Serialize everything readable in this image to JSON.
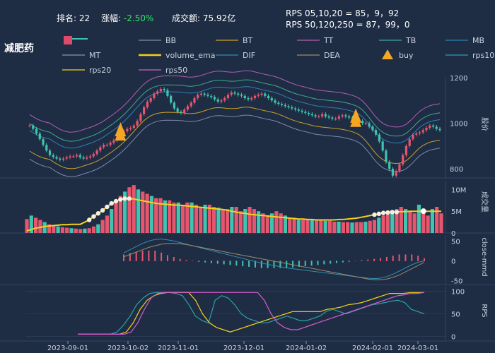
{
  "header": {
    "rank_label": "排名:",
    "rank_value": "22",
    "change_label": "涨幅:",
    "change_value": "-2.50%",
    "turnover_label": "成交额:",
    "turnover_value": "75.92亿",
    "rps_line1": "RPS 05,10,20 = 85，9，92",
    "rps_line2": "RPS 50,120,250 = 87，99，0"
  },
  "stock_name": "减肥药",
  "legend": [
    {
      "label": "",
      "color": "#e04a6a",
      "type": "candle"
    },
    {
      "label": "BB",
      "color": "#7a8aa8",
      "type": "line"
    },
    {
      "label": "BT",
      "color": "#c9a227",
      "type": "line"
    },
    {
      "label": "TT",
      "color": "#b05fb0",
      "type": "line"
    },
    {
      "label": "TB",
      "color": "#3fa89a",
      "type": "line"
    },
    {
      "label": "MB",
      "color": "#2f7fb8",
      "type": "line"
    },
    {
      "label": "MT",
      "color": "#8a93a8",
      "type": "line"
    },
    {
      "label": "volume_ema",
      "color": "#f2d21b",
      "type": "line"
    },
    {
      "label": "DIF",
      "color": "#2f8fb0",
      "type": "line"
    },
    {
      "label": "DEA",
      "color": "#9a8a6a",
      "type": "line"
    },
    {
      "label": "buy",
      "color": "#f5a623",
      "type": "triangle"
    },
    {
      "label": "rps10",
      "color": "#2aa0a8",
      "type": "line"
    },
    {
      "label": "rps20",
      "color": "#f2d21b",
      "type": "line"
    },
    {
      "label": "rps50",
      "color": "#d85ad0",
      "type": "line"
    }
  ],
  "colors": {
    "up": "#e8556e",
    "down": "#3fc4b0",
    "grid": "#33445f",
    "ema": "#f2d21b"
  },
  "chart_data": {
    "type": "candlestick",
    "x_ticks": [
      "2023-09-01",
      "2023-10-02",
      "2023-11-01",
      "2023-12-01",
      "2024-01-02",
      "2024-02-01",
      "2024-03-01"
    ],
    "price": {
      "ylabel": "股价",
      "ticks": [
        800,
        1000,
        1200
      ],
      "ylim": [
        760,
        1200
      ],
      "close": [
        990,
        975,
        955,
        930,
        905,
        880,
        860,
        852,
        845,
        840,
        845,
        850,
        855,
        855,
        860,
        850,
        845,
        850,
        855,
        865,
        880,
        895,
        905,
        905,
        915,
        925,
        940,
        955,
        965,
        975,
        980,
        990,
        1010,
        1040,
        1070,
        1095,
        1110,
        1130,
        1140,
        1150,
        1145,
        1120,
        1090,
        1065,
        1050,
        1045,
        1060,
        1075,
        1090,
        1110,
        1125,
        1130,
        1125,
        1120,
        1115,
        1105,
        1095,
        1100,
        1110,
        1125,
        1135,
        1130,
        1125,
        1120,
        1110,
        1105,
        1110,
        1120,
        1125,
        1130,
        1120,
        1110,
        1100,
        1090,
        1085,
        1080,
        1075,
        1070,
        1065,
        1060,
        1055,
        1050,
        1045,
        1040,
        1035,
        1030,
        1030,
        1040,
        1030,
        1025,
        1020,
        1020,
        1030,
        1035,
        1030,
        1025,
        1020,
        1015,
        1010,
        1000,
        1000,
        985,
        970,
        950,
        920,
        880,
        830,
        800,
        770,
        790,
        820,
        860,
        900,
        930,
        950,
        955,
        960,
        970,
        980,
        990,
        985,
        975,
        970
      ],
      "buy_signals": [
        {
          "x": "2023-09-25"
        },
        {
          "x": "2024-02-06"
        }
      ]
    },
    "volume": {
      "ylabel": "成交量",
      "ticks": [
        "5M",
        "10M"
      ],
      "ylim": [
        0,
        12
      ],
      "values": [
        3.2,
        4.0,
        3.5,
        3.0,
        2.5,
        2.0,
        1.8,
        1.5,
        1.3,
        1.2,
        1.1,
        1.0,
        0.9,
        1.0,
        1.1,
        1.5,
        2.0,
        3.0,
        4.0,
        5.5,
        7.0,
        8.5,
        9.5,
        10.5,
        11.0,
        10.0,
        9.5,
        9.0,
        8.5,
        8.0,
        8.0,
        7.5,
        7.5,
        7.0,
        7.0,
        6.5,
        7.0,
        7.0,
        6.5,
        6.0,
        6.5,
        6.5,
        6.0,
        5.8,
        5.5,
        5.5,
        6.0,
        6.0,
        5.0,
        5.5,
        6.0,
        5.5,
        5.0,
        4.5,
        4.0,
        4.5,
        5.0,
        4.5,
        4.0,
        3.5,
        3.5,
        3.0,
        3.0,
        3.2,
        3.2,
        3.0,
        3.0,
        2.8,
        2.8,
        2.6,
        2.6,
        2.5,
        2.5,
        2.4,
        2.5,
        2.5,
        2.6,
        2.8,
        3.0,
        3.5,
        4.0,
        4.5,
        5.0,
        5.5,
        6.0,
        5.5,
        5.0,
        4.5,
        6.5,
        5.0,
        4.0,
        5.5,
        6.0,
        4.5
      ],
      "ema": [
        0.5,
        0.8,
        1.1,
        1.3,
        1.5,
        1.6,
        1.7,
        1.8,
        1.9,
        1.9,
        2.0,
        2.0,
        2.0,
        2.5,
        3.0,
        3.8,
        4.5,
        5.2,
        6.0,
        6.8,
        7.3,
        7.7,
        7.9,
        7.9,
        7.8,
        7.6,
        7.4,
        7.2,
        7.0,
        6.8,
        6.7,
        6.6,
        6.5,
        6.4,
        6.4,
        6.3,
        6.2,
        6.1,
        6.0,
        5.9,
        5.8,
        5.7,
        5.6,
        5.5,
        5.4,
        5.2,
        5.0,
        4.8,
        4.6,
        4.5,
        4.3,
        4.2,
        4.1,
        4.0,
        3.9,
        3.8,
        3.7,
        3.6,
        3.5,
        3.4,
        3.3,
        3.2,
        3.2,
        3.1,
        3.1,
        3.0,
        3.0,
        3.0,
        3.0,
        3.0,
        3.1,
        3.1,
        3.2,
        3.3,
        3.4,
        3.6,
        3.8,
        4.0,
        4.2,
        4.4,
        4.6,
        4.7,
        4.8,
        4.8,
        4.9,
        4.9,
        5.0,
        5.0,
        5.0,
        5.0,
        5.0,
        5.0,
        5.0,
        5.0
      ]
    },
    "macd": {
      "ylabel": "close-mmd",
      "ticks": [
        -50,
        0,
        50
      ],
      "ylim": [
        -60,
        65
      ],
      "dif": [
        20,
        28,
        36,
        44,
        50,
        54,
        55,
        53,
        50,
        46,
        42,
        38,
        34,
        30,
        26,
        22,
        18,
        14,
        10,
        6,
        2,
        -2,
        -6,
        -9,
        -12,
        -15,
        -18,
        -20,
        -22,
        -24,
        -26,
        -28,
        -30,
        -32,
        -34,
        -36,
        -38,
        -40,
        -42,
        -44,
        -45,
        -44,
        -40,
        -34,
        -26,
        -18,
        -10,
        -4,
        0
      ],
      "dea": [
        10,
        16,
        22,
        28,
        34,
        38,
        42,
        44,
        44,
        43,
        41,
        38,
        35,
        32,
        29,
        26,
        23,
        20,
        17,
        14,
        11,
        8,
        5,
        2,
        -1,
        -4,
        -7,
        -10,
        -13,
        -16,
        -19,
        -22,
        -25,
        -28,
        -31,
        -34,
        -37,
        -40,
        -43,
        -46,
        -48,
        -48,
        -46,
        -42,
        -36,
        -28,
        -20,
        -12,
        -4
      ]
    },
    "rps": {
      "ylabel": "RPS",
      "ticks": [
        0,
        50,
        100
      ],
      "ylim": [
        -10,
        110
      ],
      "rps10": [
        5,
        5,
        5,
        5,
        5,
        5,
        10,
        25,
        45,
        70,
        85,
        95,
        97,
        97,
        97,
        95,
        90,
        70,
        45,
        35,
        30,
        80,
        90,
        85,
        70,
        50,
        40,
        35,
        30,
        30,
        35,
        40,
        45,
        40,
        35,
        35,
        40,
        45,
        55,
        60,
        55,
        50,
        55,
        60,
        65,
        70,
        72,
        75,
        78,
        80,
        75,
        60,
        55,
        50
      ],
      "rps20": [
        5,
        5,
        5,
        5,
        5,
        5,
        5,
        10,
        30,
        60,
        80,
        90,
        95,
        97,
        97,
        97,
        97,
        80,
        50,
        30,
        20,
        15,
        10,
        15,
        20,
        25,
        30,
        35,
        40,
        45,
        50,
        55,
        55,
        55,
        55,
        55,
        60,
        62,
        65,
        70,
        72,
        75,
        80,
        85,
        90,
        95,
        95,
        95,
        97,
        97,
        97
      ],
      "rps50": [
        5,
        5,
        5,
        5,
        5,
        5,
        5,
        5,
        10,
        30,
        60,
        85,
        95,
        97,
        97,
        97,
        97,
        97,
        97,
        97,
        97,
        97,
        97,
        97,
        97,
        97,
        97,
        97,
        80,
        50,
        30,
        20,
        15,
        15,
        20,
        25,
        30,
        35,
        40,
        45,
        50,
        55,
        60,
        65,
        70,
        75,
        80,
        85,
        90,
        92,
        95,
        95,
        97
      ]
    }
  }
}
